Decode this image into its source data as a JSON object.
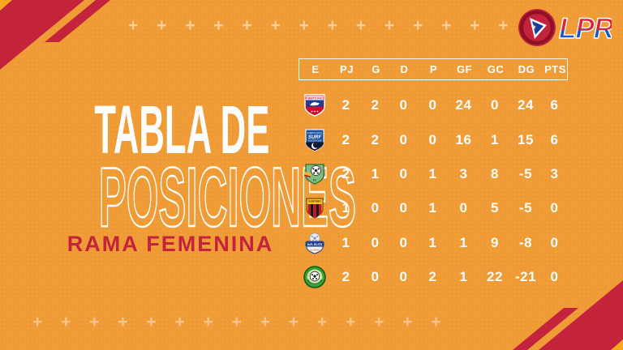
{
  "theme": {
    "background": "#F09C37",
    "accent_red": "#C4233C",
    "accent_yellow": "#F8A81C",
    "text_white": "#FFFFFF"
  },
  "branding": {
    "league_abbr": "LPR"
  },
  "title": {
    "line1": "TABLA DE",
    "line2": "POSICIONES",
    "subtitle": "RAMA FEMENINA"
  },
  "decor": {
    "plus_row_top": "+ + + + + + + + + + + + + + +",
    "plus_row_bottom": "+ + + + + + + + + + + + + + +"
  },
  "chart_data": {
    "type": "table",
    "title": "TABLA DE POSICIONES",
    "subtitle": "RAMA FEMENINA",
    "columns": [
      "E",
      "PJ",
      "G",
      "D",
      "P",
      "GF",
      "GC",
      "DG",
      "PTS"
    ],
    "rows": [
      {
        "team_icon": "team-logo-puerto-rico",
        "values": [
          "2",
          "2",
          "0",
          "0",
          "24",
          "0",
          "24",
          "6"
        ]
      },
      {
        "team_icon": "team-logo-surf",
        "values": [
          "2",
          "2",
          "0",
          "0",
          "16",
          "1",
          "15",
          "6"
        ]
      },
      {
        "team_icon": "team-logo-green-shield",
        "values": [
          "2",
          "1",
          "0",
          "1",
          "3",
          "8",
          "-5",
          "3"
        ]
      },
      {
        "team_icon": "team-logo-yellow-shield",
        "values": [
          "1",
          "0",
          "0",
          "1",
          "0",
          "5",
          "-5",
          "0"
        ]
      },
      {
        "team_icon": "team-logo-nr-elite",
        "values": [
          "1",
          "0",
          "0",
          "1",
          "1",
          "9",
          "-8",
          "0"
        ]
      },
      {
        "team_icon": "team-logo-green-circle",
        "values": [
          "2",
          "0",
          "0",
          "2",
          "1",
          "22",
          "-21",
          "0"
        ]
      }
    ]
  }
}
